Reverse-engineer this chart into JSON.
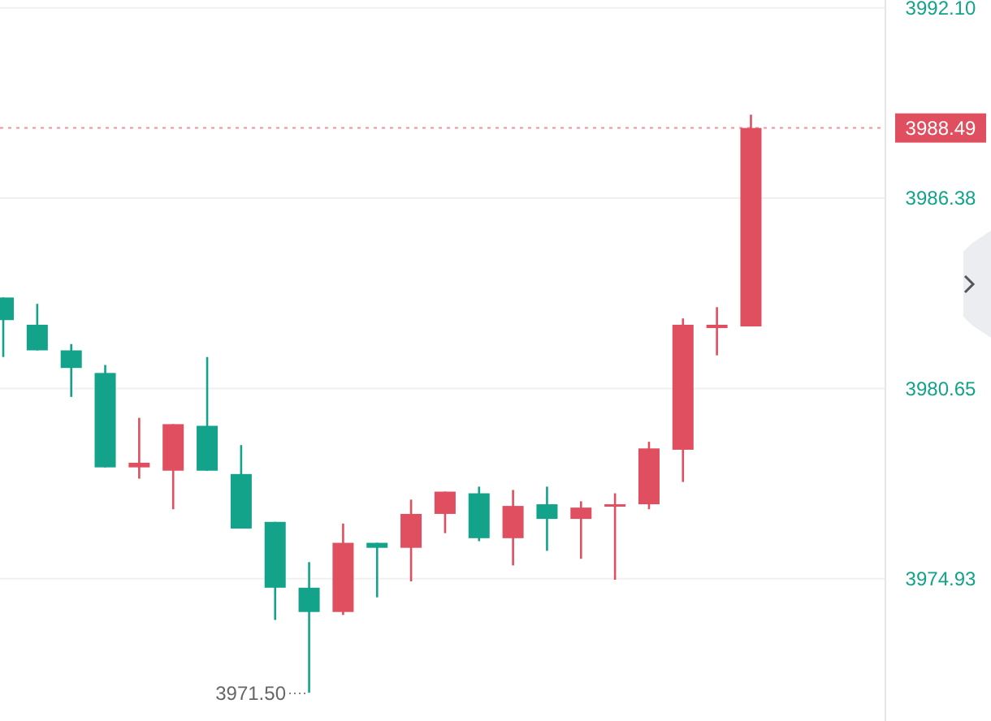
{
  "chart_data": {
    "type": "candlestick",
    "categories": [
      null,
      null,
      null,
      null,
      null,
      null,
      null,
      null,
      null,
      null,
      null,
      null,
      null,
      null,
      null,
      null,
      null,
      null,
      null,
      null,
      null,
      null,
      null,
      null,
      null,
      null
    ],
    "ohlc": [
      [
        3983.39,
        3983.39,
        3981.6,
        3982.71
      ],
      [
        3982.57,
        3983.2,
        3981.8,
        3981.8
      ],
      [
        3981.8,
        3981.99,
        3980.4,
        3981.27
      ],
      [
        3981.12,
        3981.36,
        3978.28,
        3978.28
      ],
      [
        3978.28,
        3979.77,
        3977.94,
        3978.42
      ],
      [
        3978.18,
        3979.58,
        3977.02,
        3979.58
      ],
      [
        3979.53,
        3981.6,
        3978.18,
        3978.18
      ],
      [
        3978.08,
        3978.95,
        3976.44,
        3976.44
      ],
      [
        3976.64,
        3976.64,
        3973.69,
        3974.66
      ],
      [
        3974.66,
        3975.43,
        3971.5,
        3973.93
      ],
      [
        3973.93,
        3976.59,
        3973.84,
        3976.01
      ],
      [
        3976.01,
        3976.01,
        3974.37,
        3975.86
      ],
      [
        3975.86,
        3977.31,
        3974.85,
        3976.88
      ],
      [
        3976.88,
        3977.55,
        3976.3,
        3977.55
      ],
      [
        3977.5,
        3977.7,
        3976.06,
        3976.15
      ],
      [
        3976.15,
        3977.6,
        3975.33,
        3977.12
      ],
      [
        3977.17,
        3977.7,
        3975.77,
        3976.73
      ],
      [
        3976.73,
        3977.26,
        3975.53,
        3977.07
      ],
      [
        3977.12,
        3977.5,
        3974.9,
        3977.17
      ],
      [
        3977.17,
        3979.05,
        3977.02,
        3978.85
      ],
      [
        3978.81,
        3982.76,
        3977.84,
        3982.57
      ],
      [
        3982.47,
        3983.1,
        3981.65,
        3982.57
      ],
      [
        3982.52,
        3988.89,
        3982.52,
        3988.49
      ],
      null,
      null,
      null
    ],
    "colors": [
      "#12a38a",
      "#12a38a",
      "#12a38a",
      "#12a38a",
      "#e04f5f",
      "#e04f5f",
      "#12a38a",
      "#12a38a",
      "#12a38a",
      "#12a38a",
      "#e04f5f",
      "#12a38a",
      "#e04f5f",
      "#e04f5f",
      "#12a38a",
      "#e04f5f",
      "#12a38a",
      "#e04f5f",
      "#e04f5f",
      "#e04f5f",
      "#e04f5f",
      "#e04f5f",
      "#e04f5f",
      null,
      null,
      null
    ],
    "ylim": [
      3970.65,
      3992.34
    ],
    "yticks": [
      3974.93,
      3980.65,
      3986.38,
      {
        "value": 3992.1,
        "label": "3992.10"
      }
    ],
    "grid": "y",
    "ref_lines": [
      {
        "axis": "y",
        "value": 3988.49,
        "label": "3988.49",
        "color": "#e04f5f",
        "line_style": "dotted"
      }
    ],
    "annotations": [
      "3971.50"
    ]
  }
}
